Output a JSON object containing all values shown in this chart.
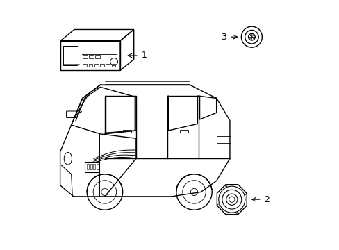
{
  "background_color": "#ffffff",
  "line_color": "#000000",
  "line_width": 1.0,
  "label_fontsize": 9,
  "items": [
    {
      "id": "1",
      "label": "1"
    },
    {
      "id": "2",
      "label": "2"
    },
    {
      "id": "3",
      "label": "3"
    }
  ]
}
